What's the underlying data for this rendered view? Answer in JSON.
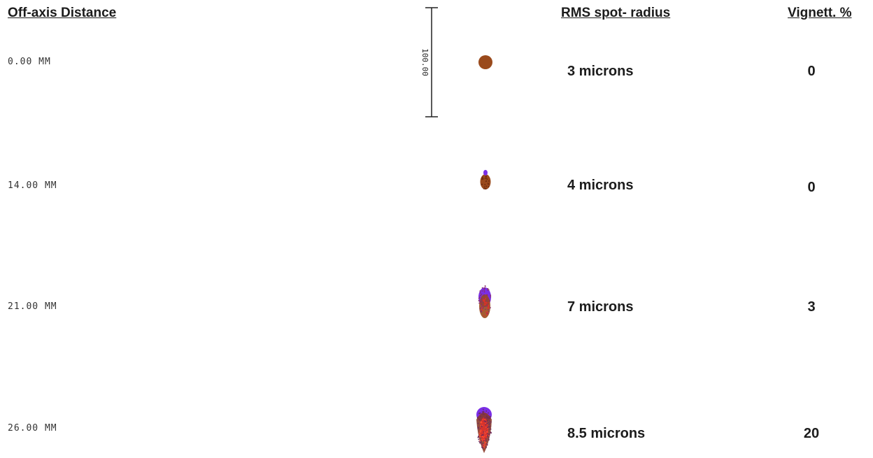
{
  "headers": {
    "off_axis_distance": "Off-axis Distance",
    "rms_spot_radius": "RMS spot- radius",
    "vignetting": "Vignett. %"
  },
  "scale_bar": {
    "label": "100.00"
  },
  "rows": [
    {
      "distance": "0.00 MM",
      "rms": "3 microns",
      "vignetting": "0"
    },
    {
      "distance": "14.00 MM",
      "rms": "4 microns",
      "vignetting": "0"
    },
    {
      "distance": "21.00 MM",
      "rms": "7 microns",
      "vignetting": "3"
    },
    {
      "distance": "26.00 MM",
      "rms": "8.5 microns",
      "vignetting": "20"
    }
  ],
  "colors": {
    "spot_main": "#9a4a1c",
    "spot_violet": "#7a2ee6",
    "spot_red": "#e0302a",
    "text": "#1c1c1c"
  }
}
